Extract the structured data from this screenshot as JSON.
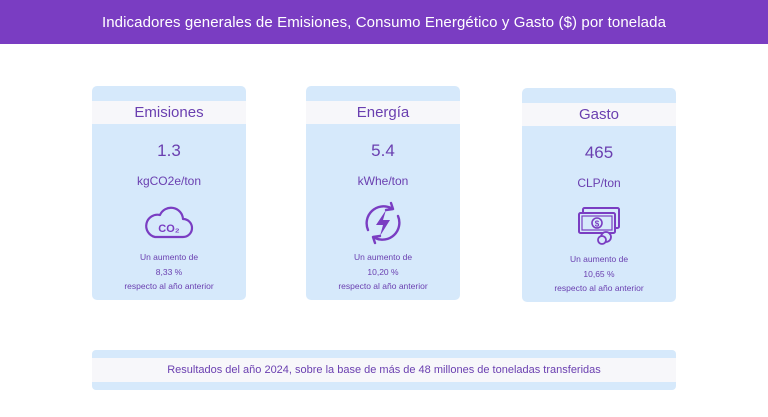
{
  "header": {
    "title": "Indicadores generales de Emisiones, Consumo Energético y Gasto ($) por tonelada"
  },
  "cards": [
    {
      "title": "Emisiones",
      "value": "1.3",
      "unit": "kgCO2e/ton",
      "icon": "co2-cloud-icon",
      "line1": "Un aumento de",
      "line2": "8,33 %",
      "line3": "respecto al año anterior"
    },
    {
      "title": "Energía",
      "value": "5.4",
      "unit": "kWhe/ton",
      "icon": "energy-bolt-icon",
      "line1": "Un aumento de",
      "line2": "10,20 %",
      "line3": "respecto al año anterior"
    },
    {
      "title": "Gasto",
      "value": "465",
      "unit": "CLP/ton",
      "icon": "money-bills-icon",
      "line1": "Un aumento de",
      "line2": "10,65 %",
      "line3": "respecto al año anterior"
    }
  ],
  "footer": {
    "text": "Resultados del año 2024, sobre la base de más de 48 millones de toneladas transferidas"
  },
  "colors": {
    "header_bg": "#7a3dc2",
    "card_bg": "#d6e9fb",
    "accent": "#6a3fb0"
  }
}
